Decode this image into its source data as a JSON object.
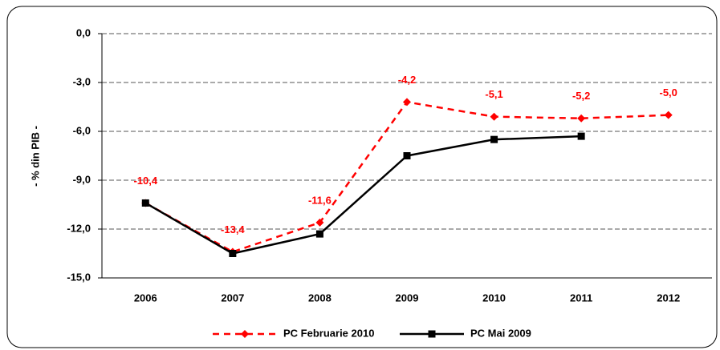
{
  "chart_data": {
    "type": "line",
    "y_label": "- % din PIB -",
    "categories": [
      "2006",
      "2007",
      "2008",
      "2009",
      "2010",
      "2011",
      "2012"
    ],
    "series": [
      {
        "name": "PC Februarie 2010",
        "color": "#ff0000",
        "line_style": "dashed",
        "marker": "diamond",
        "values": [
          -10.4,
          -13.4,
          -11.6,
          -4.2,
          -5.1,
          -5.2,
          -5.0
        ],
        "value_labels": [
          "-10,4",
          "-13,4",
          "-11,6",
          "-4,2",
          "-5,1",
          "-5,2",
          "-5,0"
        ]
      },
      {
        "name": "PC Mai 2009",
        "color": "#000000",
        "line_style": "solid",
        "marker": "square",
        "values": [
          -10.4,
          -13.5,
          -12.3,
          -7.5,
          -6.5,
          -6.3,
          null
        ]
      }
    ],
    "ylim": [
      -15,
      0
    ],
    "yticks": [
      {
        "value": 0,
        "label": "0,0"
      },
      {
        "value": -3,
        "label": "-3,0"
      },
      {
        "value": -6,
        "label": "-6,0"
      },
      {
        "value": -9,
        "label": "-9,0"
      },
      {
        "value": -12,
        "label": "-12,0"
      },
      {
        "value": -15,
        "label": "-15,0"
      }
    ],
    "grid": true
  }
}
